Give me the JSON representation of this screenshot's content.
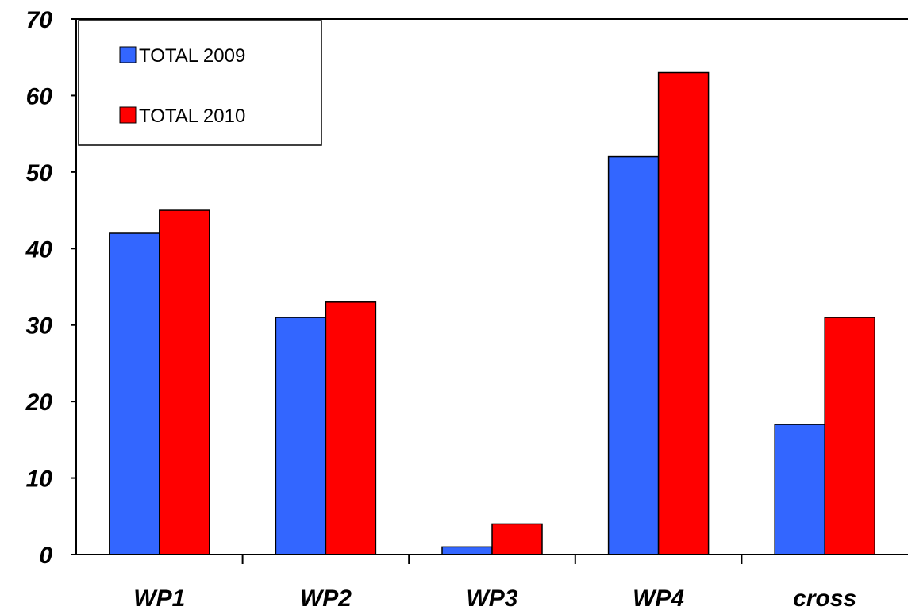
{
  "chart_data": {
    "type": "bar",
    "categories": [
      "WP1",
      "WP2",
      "WP3",
      "WP4",
      "cross"
    ],
    "series": [
      {
        "name": "TOTAL 2009",
        "values": [
          42,
          31,
          1,
          52,
          17
        ],
        "color": "#3366FF"
      },
      {
        "name": "TOTAL 2010",
        "values": [
          45,
          33,
          4,
          63,
          31
        ],
        "color": "#FF0000"
      }
    ],
    "yticks": [
      "0",
      "10",
      "20",
      "30",
      "40",
      "50",
      "60",
      "70"
    ],
    "ylim": [
      0,
      70
    ],
    "grid": false,
    "legend_position": "top-left",
    "title": "",
    "xlabel": "",
    "ylabel": ""
  }
}
